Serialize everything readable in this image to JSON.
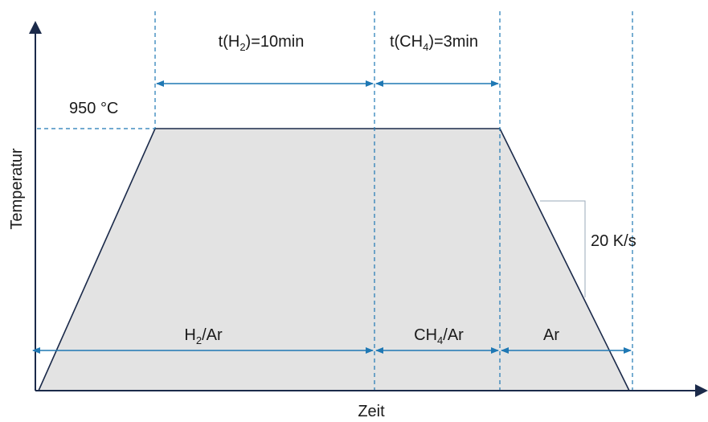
{
  "axes": {
    "y_label": "Temperatur",
    "x_label": "Zeit"
  },
  "plateau_temperature": {
    "value": "950",
    "unit": "°C"
  },
  "durations": {
    "h2": {
      "prefix": "t(H",
      "sub": "2",
      "suffix": ")=10min"
    },
    "ch4": {
      "prefix": "t(CH",
      "sub": "4",
      "suffix": ")=3min"
    }
  },
  "atmospheres": {
    "h2_ar": {
      "prefix": "H",
      "sub": "2",
      "suffix": "/Ar"
    },
    "ch4_ar": {
      "prefix": "CH",
      "sub": "4",
      "suffix": "/Ar"
    },
    "ar": {
      "text": "Ar"
    }
  },
  "cooling_rate": "20 K/s",
  "colors": {
    "axis": "#1b2a4a",
    "dimension": "#1f78b4",
    "fill": "#e3e3e3",
    "profile_stroke": "#1b2a4a",
    "slope_triangle": "#9aa8b8"
  }
}
